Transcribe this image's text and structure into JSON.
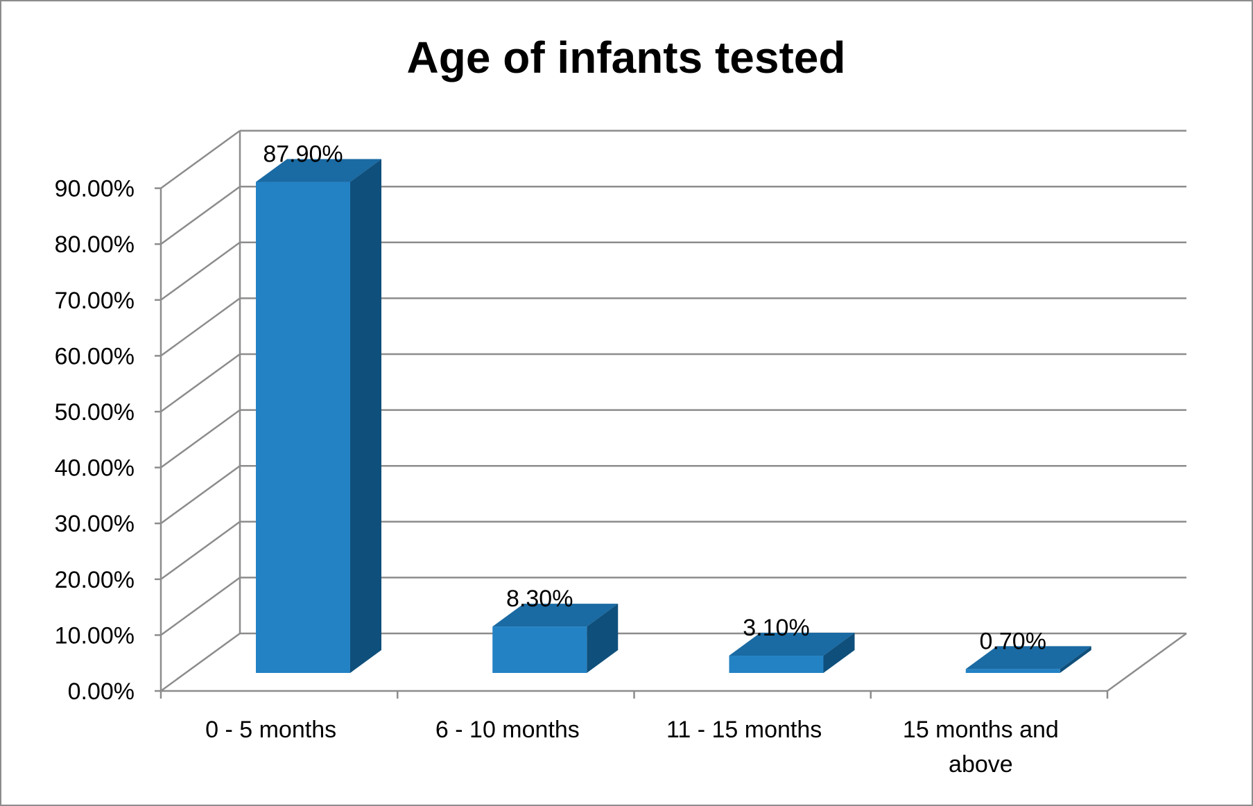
{
  "chart_data": {
    "type": "bar",
    "style": "3d-column",
    "title": "Age of infants tested",
    "categories": [
      "0 - 5 months",
      "6 - 10 months",
      "11 - 15 months",
      "15 months and above"
    ],
    "values": [
      87.9,
      8.3,
      3.1,
      0.7
    ],
    "data_labels": [
      "87.90%",
      "8.30%",
      "3.10%",
      "0.70%"
    ],
    "yticks": [
      "0.00%",
      "10.00%",
      "20.00%",
      "30.00%",
      "40.00%",
      "50.00%",
      "60.00%",
      "70.00%",
      "80.00%",
      "90.00%"
    ],
    "ylim": [
      0,
      90
    ],
    "xlabel": "",
    "ylabel": "",
    "grid": true,
    "legend": "none",
    "colors": {
      "bar_front": "#2382c4",
      "bar_side": "#0f4f7b",
      "bar_top": "#1a6aa3",
      "grid": "#8c8c8c",
      "frame": "#8c8c8c"
    }
  }
}
